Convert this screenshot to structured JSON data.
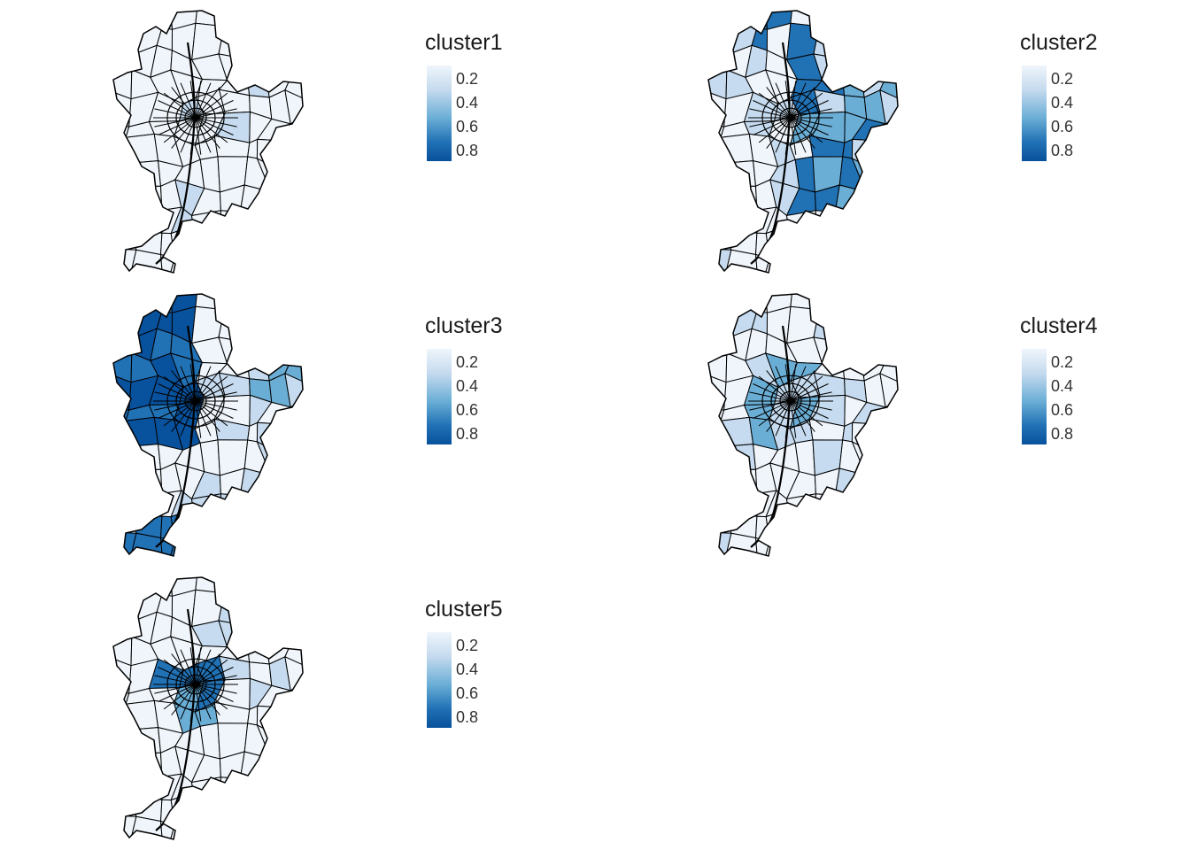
{
  "panels": [
    {
      "title": "cluster1",
      "scheme": "c1"
    },
    {
      "title": "cluster2",
      "scheme": "c2"
    },
    {
      "title": "cluster3",
      "scheme": "c3"
    },
    {
      "title": "cluster4",
      "scheme": "c4"
    },
    {
      "title": "cluster5",
      "scheme": "c5"
    }
  ],
  "legend": {
    "ticks": [
      "0.2",
      "0.4",
      "0.6",
      "0.8"
    ],
    "range": [
      0.05,
      0.95
    ],
    "colors": {
      "low": "#eff5fb",
      "light": "#c6dbef",
      "mid": "#6aaed6",
      "dark": "#2171b5",
      "darkest": "#08519c"
    }
  }
}
